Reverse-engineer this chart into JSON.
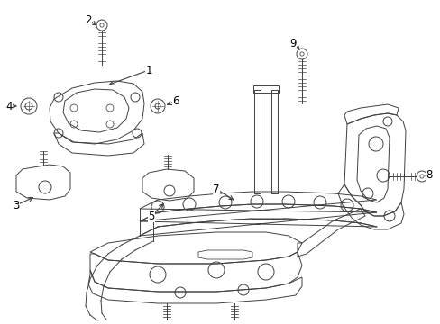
{
  "background_color": "#ffffff",
  "line_color": "#404040",
  "label_color": "#000000",
  "fig_width": 4.89,
  "fig_height": 3.6,
  "dpi": 100,
  "lw": 0.7,
  "label_fontsize": 8.5
}
